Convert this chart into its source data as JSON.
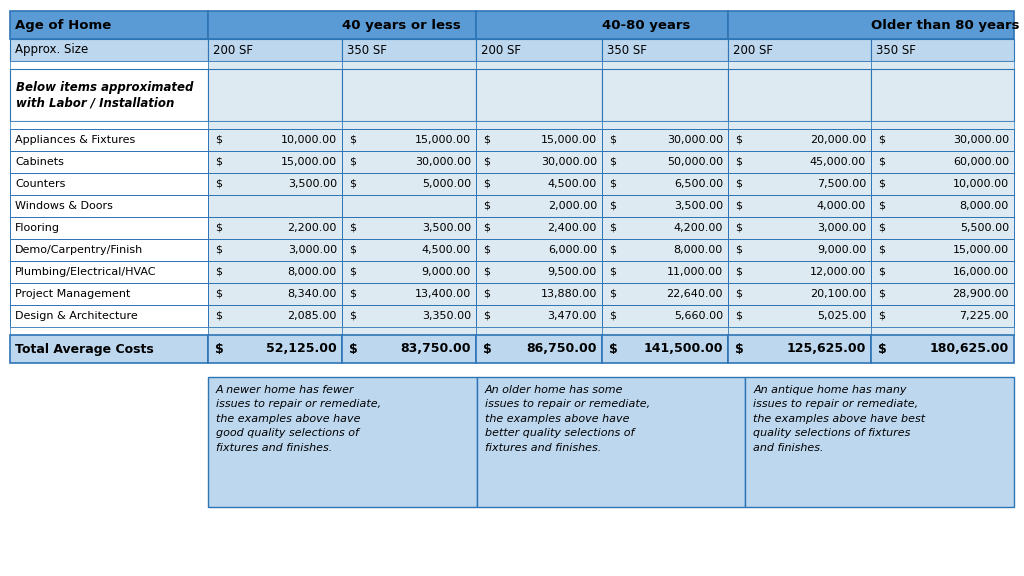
{
  "header_row": [
    "Age of Home",
    "40 years or less",
    "40-80 years",
    "Older than 80 years"
  ],
  "subheader_row": [
    "Approx. Size",
    "200 SF",
    "350 SF",
    "200 SF",
    "350 SF",
    "200 SF",
    "350 SF"
  ],
  "italic_header": "Below items approximated\nwith Labor / Installation",
  "rows": [
    [
      "Appliances & Fixtures",
      "10,000.00",
      "15,000.00",
      "15,000.00",
      "30,000.00",
      "20,000.00",
      "30,000.00"
    ],
    [
      "Cabinets",
      "15,000.00",
      "30,000.00",
      "30,000.00",
      "50,000.00",
      "45,000.00",
      "60,000.00"
    ],
    [
      "Counters",
      "3,500.00",
      "5,000.00",
      "4,500.00",
      "6,500.00",
      "7,500.00",
      "10,000.00"
    ],
    [
      "Windows & Doors",
      "",
      "",
      "2,000.00",
      "3,500.00",
      "4,000.00",
      "8,000.00"
    ],
    [
      "Flooring",
      "2,200.00",
      "3,500.00",
      "2,400.00",
      "4,200.00",
      "3,000.00",
      "5,500.00"
    ],
    [
      "Demo/Carpentry/Finish",
      "3,000.00",
      "4,500.00",
      "6,000.00",
      "8,000.00",
      "9,000.00",
      "15,000.00"
    ],
    [
      "Plumbing/Electrical/HVAC",
      "8,000.00",
      "9,000.00",
      "9,500.00",
      "11,000.00",
      "12,000.00",
      "16,000.00"
    ],
    [
      "Project Management",
      "8,340.00",
      "13,400.00",
      "13,880.00",
      "22,640.00",
      "20,100.00",
      "28,900.00"
    ],
    [
      "Design & Architecture",
      "2,085.00",
      "3,350.00",
      "3,470.00",
      "5,660.00",
      "5,025.00",
      "7,225.00"
    ]
  ],
  "total_row": [
    "Total Average Costs",
    "52,125.00",
    "83,750.00",
    "86,750.00",
    "141,500.00",
    "125,625.00",
    "180,625.00"
  ],
  "notes": [
    "A newer home has fewer\nissues to repair or remediate,\nthe examples above have\ngood quality selections of\nfixtures and finishes.",
    "An older home has some\nissues to repair or remediate,\nthe examples above have\nbetter quality selections of\nfixtures and finishes.",
    "An antique home has many\nissues to repair or remediate,\nthe examples above have best\nquality selections of fixtures\nand finishes."
  ],
  "color_header": "#5B9BD5",
  "color_subheader": "#BDD7EE",
  "color_data_light": "#DEEAF1",
  "color_data_white": "#FFFFFF",
  "color_total_bg": "#BDD7EE",
  "color_note_bg": "#BDD7EE",
  "color_border": "#2E75B6"
}
